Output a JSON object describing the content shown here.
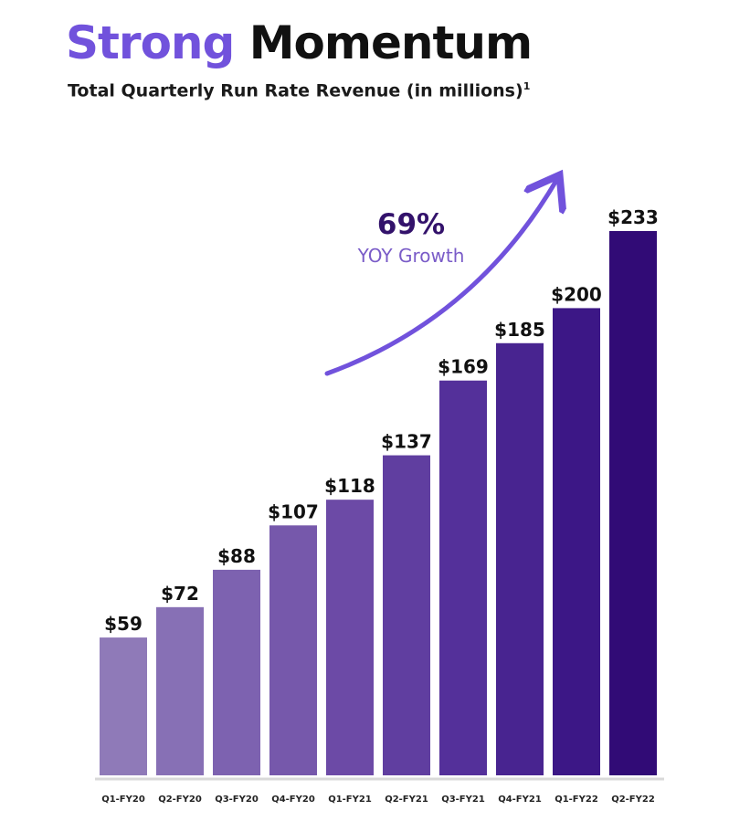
{
  "header": {
    "title_accent": "Strong",
    "title_main": "Momentum",
    "subtitle": "Total Quarterly Run Rate Revenue (in millions)",
    "subtitle_footnote": "1"
  },
  "annotation": {
    "growth_percent": "69%",
    "growth_text": "YOY Growth",
    "arrow_color": "#7152dc"
  },
  "chart_data": {
    "type": "bar",
    "categories": [
      "Q1-FY20",
      "Q2-FY20",
      "Q3-FY20",
      "Q4-FY20",
      "Q1-FY21",
      "Q2-FY21",
      "Q3-FY21",
      "Q4-FY21",
      "Q1-FY22",
      "Q2-FY22"
    ],
    "values": [
      59,
      72,
      88,
      107,
      118,
      137,
      169,
      185,
      200,
      233
    ],
    "data_labels": [
      "$59",
      "$72",
      "$88",
      "$107",
      "$118",
      "$137",
      "$169",
      "$185",
      "$200",
      "$233"
    ],
    "ylim": [
      0,
      233
    ],
    "grid": false,
    "legend": "none",
    "bar_colors": [
      "#8f7ab8",
      "#8770b5",
      "#7d62b0",
      "#7658ab",
      "#6c4aa6",
      "#603ea0",
      "#54309a",
      "#482490",
      "#3c1786",
      "#310b76"
    ]
  }
}
